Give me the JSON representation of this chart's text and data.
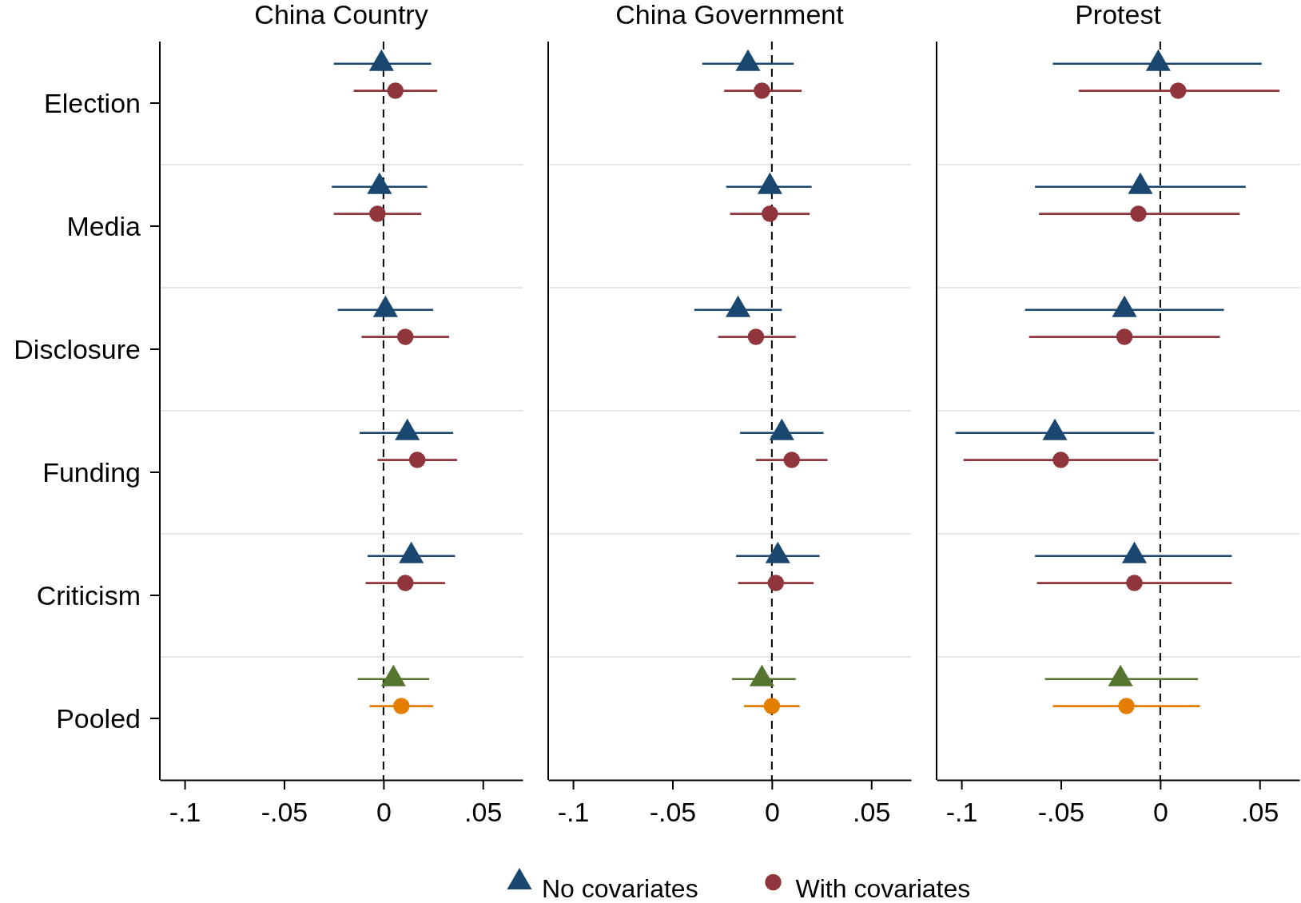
{
  "chart_data": [
    {
      "type": "scatter",
      "title": "China Country",
      "orientation": "horizontal",
      "categories": [
        "Election",
        "Media",
        "Disclosure",
        "Funding",
        "Criticism",
        "Pooled"
      ],
      "xlim": [
        -0.1125,
        0.07
      ],
      "xticks": [
        {
          "value": -0.1,
          "label": "-.1"
        },
        {
          "value": -0.05,
          "label": "-.05"
        },
        {
          "value": 0,
          "label": "0"
        },
        {
          "value": 0.05,
          "label": ".05"
        }
      ],
      "grid": "y",
      "ref_lines": [
        {
          "axis": "x",
          "value": 0,
          "line_style": "dashed",
          "color": "#000000"
        }
      ],
      "series": [
        {
          "color": "#1a476f",
          "colors": [
            "#1a476f",
            "#1a476f",
            "#1a476f",
            "#1a476f",
            "#1a476f",
            "#55752f"
          ],
          "marker": "triangle",
          "values": [
            -0.001,
            -0.002,
            0.001,
            0.012,
            0.014,
            0.005
          ],
          "errors": [
            [
              -0.025,
              0.024
            ],
            [
              -0.026,
              0.022
            ],
            [
              -0.023,
              0.025
            ],
            [
              -0.012,
              0.035
            ],
            [
              -0.008,
              0.036
            ],
            [
              -0.013,
              0.023
            ]
          ]
        },
        {
          "color": "#90353b",
          "colors": [
            "#90353b",
            "#90353b",
            "#90353b",
            "#90353b",
            "#90353b",
            "#e37e00"
          ],
          "marker": "circle",
          "values": [
            0.006,
            -0.003,
            0.011,
            0.017,
            0.011,
            0.009
          ],
          "errors": [
            [
              -0.015,
              0.027
            ],
            [
              -0.025,
              0.019
            ],
            [
              -0.011,
              0.033
            ],
            [
              -0.003,
              0.037
            ],
            [
              -0.009,
              0.031
            ],
            [
              -0.007,
              0.025
            ]
          ]
        }
      ]
    },
    {
      "type": "scatter",
      "title": "China Government",
      "orientation": "horizontal",
      "xlim": [
        -0.1125,
        0.07
      ],
      "xticks": [
        {
          "value": -0.1,
          "label": "-.1"
        },
        {
          "value": -0.05,
          "label": "-.05"
        },
        {
          "value": 0,
          "label": "0"
        },
        {
          "value": 0.05,
          "label": ".05"
        }
      ],
      "grid": "y",
      "tick_labels": "x",
      "legend": "bottom",
      "ref_lines": [
        {
          "axis": "x",
          "value": 0,
          "line_style": "dashed",
          "color": "#000000"
        }
      ],
      "series": [
        {
          "name": "No covariates",
          "color": "#1a476f",
          "colors": [
            "#1a476f",
            "#1a476f",
            "#1a476f",
            "#1a476f",
            "#1a476f",
            "#55752f"
          ],
          "marker": "triangle",
          "values": [
            -0.012,
            -0.001,
            -0.017,
            0.005,
            0.003,
            -0.005
          ],
          "errors": [
            [
              -0.035,
              0.011
            ],
            [
              -0.023,
              0.02
            ],
            [
              -0.039,
              0.005
            ],
            [
              -0.016,
              0.026
            ],
            [
              -0.018,
              0.024
            ],
            [
              -0.02,
              0.012
            ]
          ]
        },
        {
          "name": "With covariates",
          "color": "#90353b",
          "colors": [
            "#90353b",
            "#90353b",
            "#90353b",
            "#90353b",
            "#90353b",
            "#e37e00"
          ],
          "marker": "circle",
          "values": [
            -0.005,
            -0.001,
            -0.008,
            0.01,
            0.002,
            0
          ],
          "errors": [
            [
              -0.024,
              0.015
            ],
            [
              -0.021,
              0.019
            ],
            [
              -0.027,
              0.012
            ],
            [
              -0.008,
              0.028
            ],
            [
              -0.017,
              0.021
            ],
            [
              -0.014,
              0.014
            ]
          ]
        }
      ]
    },
    {
      "type": "scatter",
      "title": "Protest",
      "orientation": "horizontal",
      "xlim": [
        -0.1125,
        0.07
      ],
      "xticks": [
        {
          "value": -0.1,
          "label": "-.1"
        },
        {
          "value": -0.05,
          "label": "-.05"
        },
        {
          "value": 0,
          "label": "0"
        },
        {
          "value": 0.05,
          "label": ".05"
        }
      ],
      "grid": "y",
      "tick_labels": "x",
      "ref_lines": [
        {
          "axis": "x",
          "value": 0,
          "line_style": "dashed",
          "color": "#000000"
        }
      ],
      "series": [
        {
          "color": "#1a476f",
          "colors": [
            "#1a476f",
            "#1a476f",
            "#1a476f",
            "#1a476f",
            "#1a476f",
            "#55752f"
          ],
          "marker": "triangle",
          "values": [
            -0.001,
            -0.01,
            -0.018,
            -0.053,
            -0.013,
            -0.02
          ],
          "errors": [
            [
              -0.054,
              0.051
            ],
            [
              -0.063,
              0.043
            ],
            [
              -0.068,
              0.032
            ],
            [
              -0.103,
              -0.003
            ],
            [
              -0.063,
              0.036
            ],
            [
              -0.058,
              0.019
            ]
          ]
        },
        {
          "color": "#90353b",
          "colors": [
            "#90353b",
            "#90353b",
            "#90353b",
            "#90353b",
            "#90353b",
            "#e37e00"
          ],
          "marker": "circle",
          "values": [
            0.009,
            -0.011,
            -0.018,
            -0.05,
            -0.013,
            -0.017
          ],
          "errors": [
            [
              -0.041,
              0.06
            ],
            [
              -0.061,
              0.04
            ],
            [
              -0.066,
              0.03
            ],
            [
              -0.099,
              -0.001
            ],
            [
              -0.062,
              0.036
            ],
            [
              -0.054,
              0.02
            ]
          ]
        }
      ]
    }
  ]
}
